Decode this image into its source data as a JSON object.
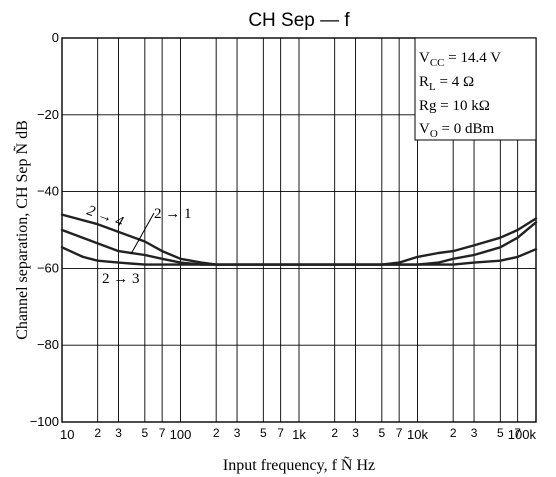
{
  "chart_data": {
    "type": "line",
    "title": "CH Sep — f",
    "xlabel": "Input frequency, f Ñ  Hz",
    "ylabel": "Channel separation, CH Sep Ñ  dB",
    "x_scale": "log",
    "xlim": [
      10,
      100000
    ],
    "ylim": [
      -100,
      0
    ],
    "grid": true,
    "y_ticks": [
      0,
      -20,
      -40,
      -60,
      -80,
      -100
    ],
    "x_major_ticks": [
      {
        "value": 10,
        "label": "10"
      },
      {
        "value": 100,
        "label": "100"
      },
      {
        "value": 1000,
        "label": "1k"
      },
      {
        "value": 10000,
        "label": "10k"
      },
      {
        "value": 100000,
        "label": "100k"
      }
    ],
    "x_minor_ticks": [
      {
        "value": 20,
        "label": "2"
      },
      {
        "value": 30,
        "label": "3"
      },
      {
        "value": 50,
        "label": "5"
      },
      {
        "value": 70,
        "label": "7"
      },
      {
        "value": 200,
        "label": "2"
      },
      {
        "value": 300,
        "label": "3"
      },
      {
        "value": 500,
        "label": "5"
      },
      {
        "value": 700,
        "label": "7"
      },
      {
        "value": 2000,
        "label": "2"
      },
      {
        "value": 3000,
        "label": "3"
      },
      {
        "value": 5000,
        "label": "5"
      },
      {
        "value": 7000,
        "label": "7"
      },
      {
        "value": 20000,
        "label": "2"
      },
      {
        "value": 30000,
        "label": "3"
      },
      {
        "value": 50000,
        "label": "5"
      },
      {
        "value": 70000,
        "label": "7"
      }
    ],
    "conditions": {
      "vcc_main": "V",
      "vcc_sub": "CC",
      "vcc_val": " = 14.4 V",
      "rl_main": "R",
      "rl_sub": "L",
      "rl_val": " = 4 Ω",
      "rg": "Rg = 10 kΩ",
      "vo_main": "V",
      "vo_sub": "O",
      "vo_val": " = 0 dBm"
    },
    "series": [
      {
        "name": "2 → 4",
        "x": [
          10,
          20,
          30,
          50,
          70,
          100,
          150,
          200,
          300,
          500,
          1000,
          2000,
          5000,
          7000,
          10000,
          15000,
          20000,
          30000,
          50000,
          70000,
          100000
        ],
        "y": [
          -46,
          -48.5,
          -50.5,
          -53,
          -55.5,
          -57.5,
          -58.5,
          -59,
          -59,
          -59,
          -59,
          -59,
          -59,
          -58.5,
          -57,
          -56,
          -55.5,
          -54,
          -52,
          -50,
          -47
        ]
      },
      {
        "name": "2 → 1",
        "x": [
          10,
          20,
          30,
          50,
          70,
          100,
          150,
          200,
          300,
          500,
          1000,
          2000,
          5000,
          10000,
          15000,
          20000,
          30000,
          50000,
          70000,
          100000
        ],
        "y": [
          -50,
          -53.5,
          -55.5,
          -56.5,
          -57.5,
          -58.5,
          -59,
          -59,
          -59,
          -59,
          -59,
          -59,
          -59,
          -59,
          -58.5,
          -57.5,
          -56.5,
          -54.5,
          -52,
          -48
        ]
      },
      {
        "name": "2 → 3",
        "x": [
          10,
          15,
          20,
          30,
          50,
          100,
          1000,
          10000,
          20000,
          30000,
          50000,
          70000,
          100000
        ],
        "y": [
          -54.5,
          -57,
          -58,
          -58.5,
          -59,
          -59,
          -59,
          -59,
          -59,
          -58.5,
          -58,
          -57,
          -55
        ]
      }
    ]
  }
}
